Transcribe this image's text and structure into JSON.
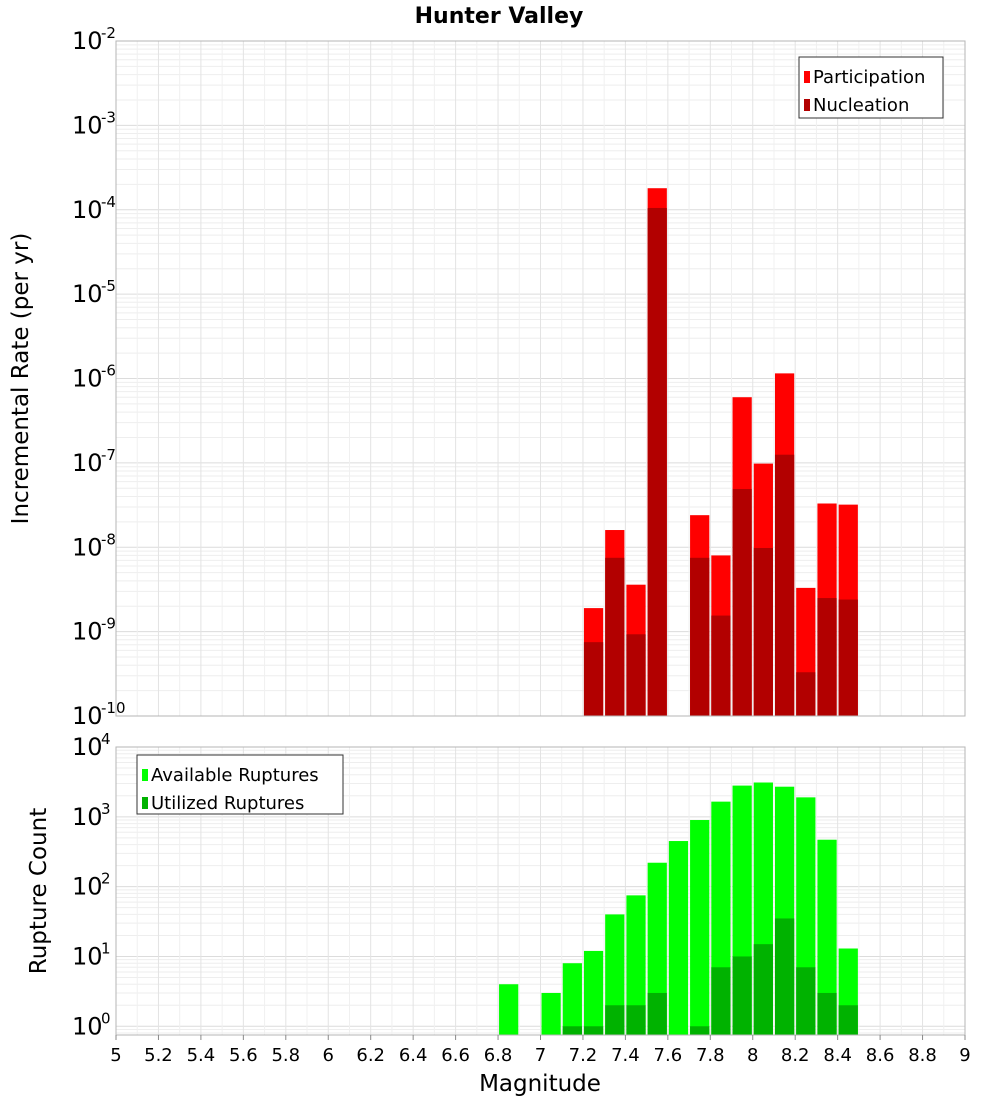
{
  "chart_data": [
    {
      "type": "bar",
      "title": "Hunter Valley",
      "xlabel": "",
      "ylabel": "Incremental Rate (per yr)",
      "yscale": "log",
      "ylim": [
        1e-10,
        0.01
      ],
      "xlim": [
        5,
        9
      ],
      "grid": true,
      "legend_position": "top-right",
      "y_ticks": [
        {
          "base": "10",
          "exp": "-10"
        },
        {
          "base": "10",
          "exp": "-9"
        },
        {
          "base": "10",
          "exp": "-8"
        },
        {
          "base": "10",
          "exp": "-7"
        },
        {
          "base": "10",
          "exp": "-6"
        },
        {
          "base": "10",
          "exp": "-5"
        },
        {
          "base": "10",
          "exp": "-4"
        },
        {
          "base": "10",
          "exp": "-3"
        },
        {
          "base": "10",
          "exp": "-2"
        }
      ],
      "series": [
        {
          "name": "Participation",
          "color": "#ff0000",
          "x": [
            7.25,
            7.35,
            7.45,
            7.55,
            7.75,
            7.85,
            7.95,
            8.05,
            8.15,
            8.25,
            8.35,
            8.45
          ],
          "values": [
            1.9e-09,
            1.6e-08,
            3.6e-09,
            0.00018,
            2.4e-08,
            8e-09,
            6e-07,
            9.8e-08,
            1.15e-06,
            3.3e-09,
            3.3e-08,
            3.2e-08
          ]
        },
        {
          "name": "Nucleation",
          "color": "#b20000",
          "x": [
            7.25,
            7.35,
            7.45,
            7.55,
            7.75,
            7.85,
            7.95,
            8.05,
            8.15,
            8.25,
            8.35,
            8.45
          ],
          "values": [
            7.5e-10,
            7.5e-09,
            9.3e-10,
            0.000105,
            7.5e-09,
            1.55e-09,
            4.9e-08,
            9.8e-09,
            1.25e-07,
            3.3e-10,
            2.5e-09,
            2.4e-09
          ]
        }
      ]
    },
    {
      "type": "bar",
      "title": "",
      "xlabel": "Magnitude",
      "ylabel": "Rupture Count",
      "yscale": "log",
      "ylim": [
        0.75,
        10000
      ],
      "xlim": [
        5,
        9
      ],
      "grid": true,
      "legend_position": "top-left",
      "y_ticks": [
        {
          "base": "10",
          "exp": "0"
        },
        {
          "base": "10",
          "exp": "1"
        },
        {
          "base": "10",
          "exp": "2"
        },
        {
          "base": "10",
          "exp": "3"
        },
        {
          "base": "10",
          "exp": "4"
        }
      ],
      "x_tick_labels": [
        "5",
        "5.2",
        "5.4",
        "5.6",
        "5.8",
        "6",
        "6.2",
        "6.4",
        "6.6",
        "6.8",
        "7",
        "7.2",
        "7.4",
        "7.6",
        "7.8",
        "8",
        "8.2",
        "8.4",
        "8.6",
        "8.8",
        "9"
      ],
      "series": [
        {
          "name": "Available Ruptures",
          "color": "#00ff00",
          "x": [
            6.85,
            7.05,
            7.15,
            7.25,
            7.35,
            7.45,
            7.55,
            7.65,
            7.75,
            7.85,
            7.95,
            8.05,
            8.15,
            8.25,
            8.35,
            8.45
          ],
          "values": [
            4,
            3,
            8,
            12,
            40,
            75,
            220,
            450,
            900,
            1650,
            2800,
            3100,
            2700,
            1900,
            470,
            13
          ]
        },
        {
          "name": "Utilized Ruptures",
          "color": "#00b200",
          "x": [
            7.15,
            7.25,
            7.35,
            7.45,
            7.55,
            7.75,
            7.85,
            7.95,
            8.05,
            8.15,
            8.25,
            8.35,
            8.45
          ],
          "values": [
            1,
            1,
            2,
            2,
            3,
            1,
            7,
            10,
            15,
            35,
            7,
            3,
            2
          ]
        }
      ]
    }
  ]
}
